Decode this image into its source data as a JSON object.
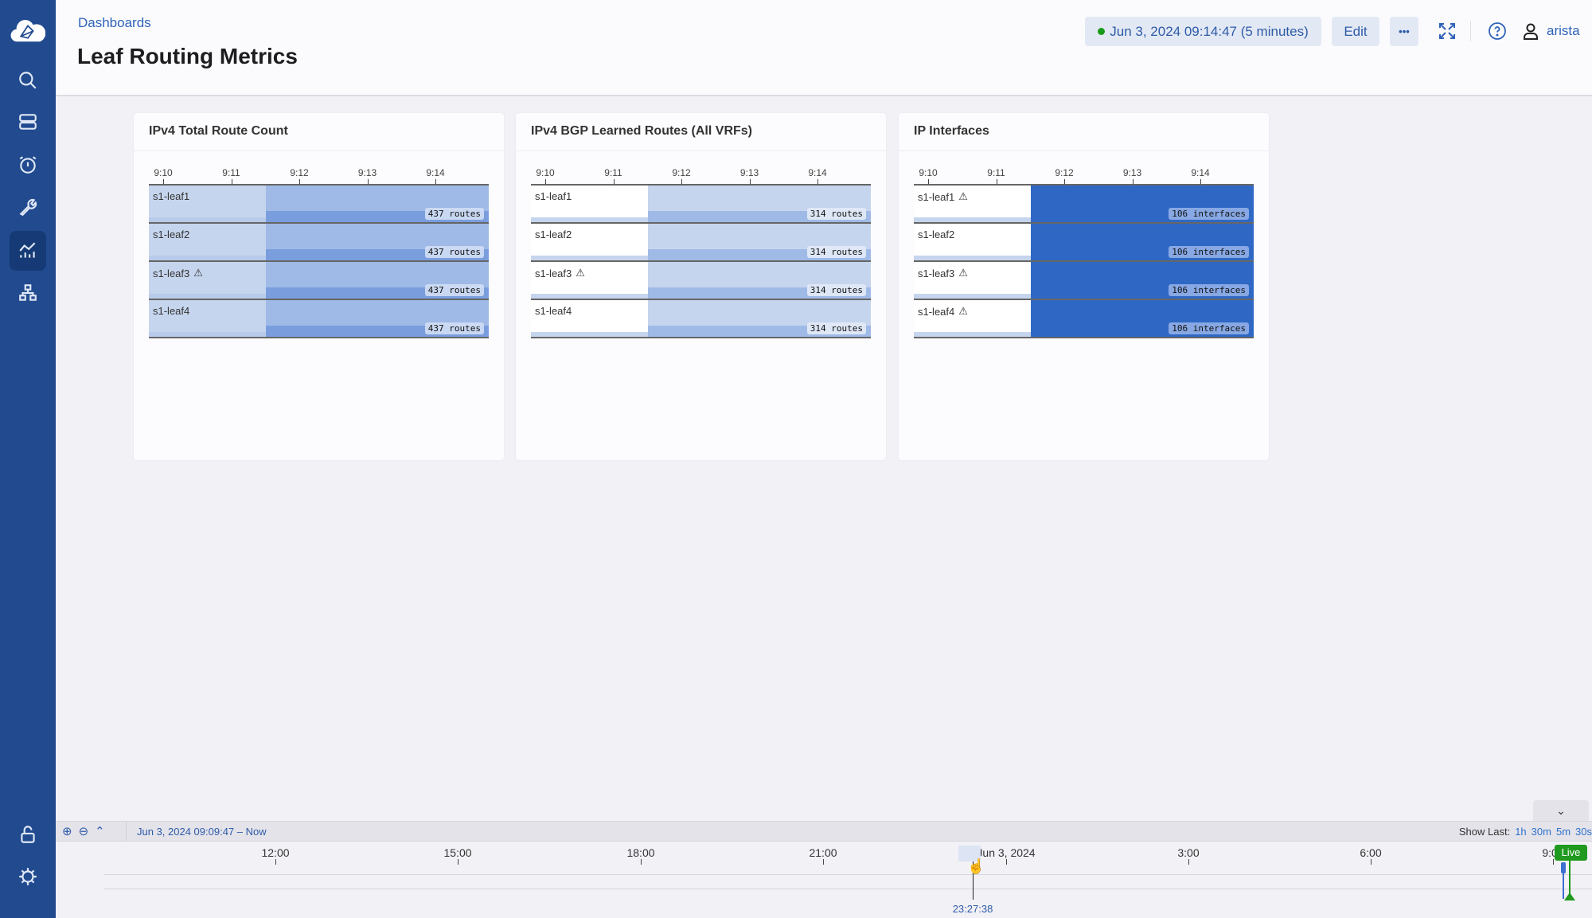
{
  "header": {
    "breadcrumb": "Dashboards",
    "title": "Leaf Routing Metrics",
    "time_range": "Jun 3, 2024 09:14:47 (5 minutes)",
    "edit_label": "Edit",
    "more_label": "•••",
    "user": "arista"
  },
  "sidebar": {
    "items": [
      "logo",
      "search",
      "devices",
      "events",
      "provisioning",
      "dashboards",
      "topology",
      "lock",
      "settings"
    ],
    "active": "dashboards"
  },
  "panels": [
    {
      "title": "IPv4 Total Route Count",
      "ticks": [
        "9:10",
        "9:11",
        "9:12",
        "9:13",
        "9:14"
      ],
      "colors": {
        "left": "#c6d5ee",
        "left_strip": "#b9cbea",
        "right": "#9fbae6",
        "right_strip": "#7a9edd",
        "badge": "rgba(210,222,244,0.9)"
      },
      "rows": [
        {
          "host": "s1-leaf1",
          "warning": false,
          "value": "437 routes"
        },
        {
          "host": "s1-leaf2",
          "warning": false,
          "value": "437 routes"
        },
        {
          "host": "s1-leaf3",
          "warning": true,
          "value": "437 routes"
        },
        {
          "host": "s1-leaf4",
          "warning": false,
          "value": "437 routes"
        }
      ]
    },
    {
      "title": "IPv4 BGP Learned Routes (All VRFs)",
      "ticks": [
        "9:10",
        "9:11",
        "9:12",
        "9:13",
        "9:14"
      ],
      "colors": {
        "left": "#ffffff",
        "left_strip": "#c6d5ee",
        "right": "#c6d5ee",
        "right_strip": "#9fbae6",
        "badge": "rgba(225,233,247,0.95)"
      },
      "rows": [
        {
          "host": "s1-leaf1",
          "warning": false,
          "value": "314 routes"
        },
        {
          "host": "s1-leaf2",
          "warning": false,
          "value": "314 routes"
        },
        {
          "host": "s1-leaf3",
          "warning": true,
          "value": "314 routes"
        },
        {
          "host": "s1-leaf4",
          "warning": false,
          "value": "314 routes"
        }
      ]
    },
    {
      "title": "IP Interfaces",
      "ticks": [
        "9:10",
        "9:11",
        "9:12",
        "9:13",
        "9:14"
      ],
      "colors": {
        "left": "#ffffff",
        "left_strip": "#c6d5ee",
        "right": "#2f68c4",
        "right_strip": "#2f68c4",
        "badge": "rgba(140,172,230,0.95)"
      },
      "rows": [
        {
          "host": "s1-leaf1",
          "warning": true,
          "value": "106 interfaces"
        },
        {
          "host": "s1-leaf2",
          "warning": false,
          "value": "106 interfaces"
        },
        {
          "host": "s1-leaf3",
          "warning": true,
          "value": "106 interfaces"
        },
        {
          "host": "s1-leaf4",
          "warning": true,
          "value": "106 interfaces"
        }
      ]
    }
  ],
  "timeline": {
    "range": "Jun 3, 2024 09:09:47  –  Now",
    "show_last_label": "Show Last:",
    "show_last": [
      "1h",
      "30m",
      "5m",
      "30s"
    ],
    "ticks": [
      "12:00",
      "15:00",
      "18:00",
      "21:00",
      "Jun 3, 2024",
      "3:00",
      "6:00",
      "9:00"
    ],
    "cursor": "23:27:38",
    "live_label": "Live",
    "live_color": "#1f9a1f"
  }
}
